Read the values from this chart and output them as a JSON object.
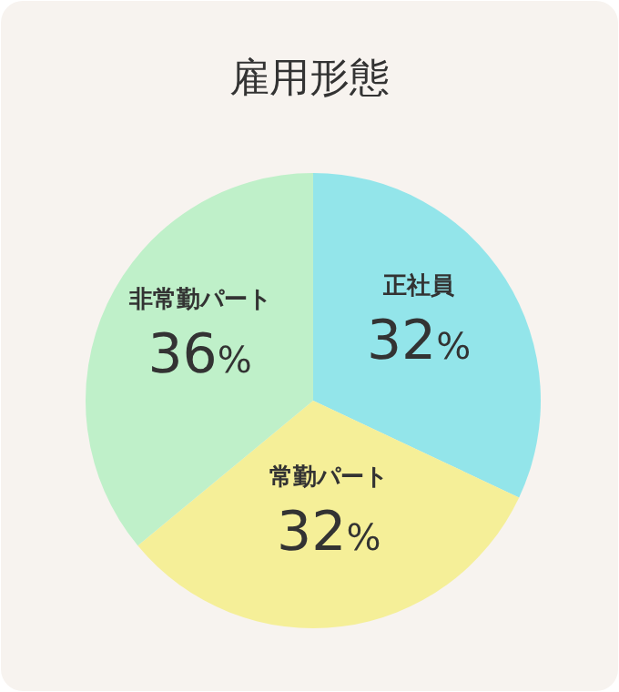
{
  "chart_data": {
    "type": "pie",
    "title": "雇用形態",
    "categories": [
      "正社員",
      "常勤パート",
      "非常勤パート"
    ],
    "values": [
      32,
      32,
      36
    ],
    "value_labels": [
      "32%",
      "32%",
      "36%"
    ],
    "colors": [
      "#93e5ea",
      "#f5ef98",
      "#bff0c9"
    ]
  }
}
